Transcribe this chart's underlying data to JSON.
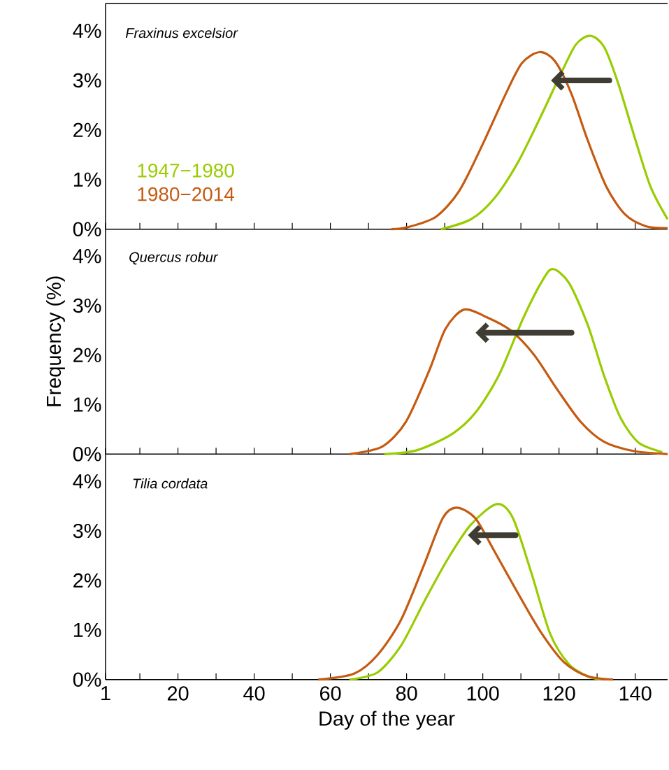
{
  "chart_data": [
    {
      "type": "line",
      "title": "Fraxinus excelsior",
      "legend": "left",
      "tick_labels": "y",
      "xlim": [
        1,
        148.5
      ],
      "ylim": [
        0,
        4.55
      ],
      "xticks": [
        1,
        {
          "value": 10,
          "label": null
        },
        20,
        {
          "value": 30,
          "label": null
        },
        40,
        {
          "value": 50,
          "label": null
        },
        60,
        {
          "value": 70,
          "label": null
        },
        80,
        {
          "value": 90,
          "label": null
        },
        100,
        {
          "value": 110,
          "label": null
        },
        120,
        {
          "value": 130,
          "label": null
        },
        140
      ],
      "yticks": [
        {
          "value": 0,
          "label": "0%"
        },
        {
          "value": 1,
          "label": "1%"
        },
        {
          "value": 2,
          "label": "2%"
        },
        {
          "value": 3,
          "label": "3%"
        },
        {
          "value": 4,
          "label": "4%"
        }
      ],
      "series": [
        {
          "name": "1947−1980",
          "color": "#99cc00",
          "x": [
            89,
            96.9,
            103,
            109.1,
            115.2,
            120.1,
            124.4,
            128.2,
            131.8,
            135.4,
            139.7,
            144,
            148.5
          ],
          "values": [
            0,
            0.2,
            0.62,
            1.33,
            2.27,
            3.07,
            3.72,
            3.9,
            3.68,
            2.97,
            1.89,
            0.86,
            0.2
          ]
        },
        {
          "name": "1980−2014",
          "color": "#c55a11",
          "x": [
            76,
            80.3,
            87.7,
            93.8,
            99.9,
            106.1,
            110.3,
            114.9,
            118.9,
            123.2,
            127.5,
            132.4,
            137.3,
            142.8,
            148.5
          ],
          "values": [
            0,
            0.04,
            0.25,
            0.77,
            1.7,
            2.74,
            3.35,
            3.57,
            3.39,
            2.74,
            1.8,
            0.86,
            0.3,
            0.06,
            0.02
          ]
        }
      ]
    },
    {
      "type": "line",
      "title": "Quercus robur",
      "ylabel": "Frequency (%)",
      "tick_labels": "y",
      "xlim": [
        1,
        148.5
      ],
      "ylim": [
        0,
        4.55
      ],
      "xticks": [
        1,
        {
          "value": 10,
          "label": null
        },
        20,
        {
          "value": 30,
          "label": null
        },
        40,
        {
          "value": 50,
          "label": null
        },
        60,
        {
          "value": 70,
          "label": null
        },
        80,
        {
          "value": 90,
          "label": null
        },
        100,
        {
          "value": 110,
          "label": null
        },
        120,
        {
          "value": 130,
          "label": null
        },
        140
      ],
      "yticks": [
        {
          "value": 0,
          "label": "0%"
        },
        {
          "value": 1,
          "label": "1%"
        },
        {
          "value": 2,
          "label": "2%"
        },
        {
          "value": 3,
          "label": "3%"
        },
        {
          "value": 4,
          "label": "4%"
        }
      ],
      "series": [
        {
          "color": "#99cc00",
          "x": [
            74.2,
            82.8,
            92,
            98.1,
            104.2,
            110.4,
            115.3,
            118.3,
            122.6,
            127.5,
            131.8,
            136.1,
            140.9,
            147.1
          ],
          "values": [
            0,
            0.08,
            0.41,
            0.84,
            1.59,
            2.71,
            3.46,
            3.74,
            3.46,
            2.62,
            1.59,
            0.74,
            0.23,
            0.04
          ]
        },
        {
          "color": "#c55a11",
          "x": [
            65.1,
            73.6,
            79.8,
            85.9,
            90.2,
            95.1,
            101.2,
            107.3,
            113.4,
            119.5,
            125.7,
            131.8,
            139.7,
            148.5
          ],
          "values": [
            0,
            0.15,
            0.65,
            1.68,
            2.53,
            2.92,
            2.76,
            2.5,
            2.01,
            1.31,
            0.65,
            0.25,
            0.06,
            0
          ]
        }
      ]
    },
    {
      "type": "line",
      "title": "Tilia cordata",
      "xlabel": "Day of the year",
      "xlim": [
        1,
        148.5
      ],
      "ylim": [
        0,
        4.55
      ],
      "xticks": [
        1,
        {
          "value": 10,
          "label": null
        },
        20,
        {
          "value": 30,
          "label": null
        },
        40,
        {
          "value": 50,
          "label": null
        },
        60,
        {
          "value": 70,
          "label": null
        },
        80,
        {
          "value": 90,
          "label": null
        },
        100,
        {
          "value": 110,
          "label": null
        },
        120,
        {
          "value": 130,
          "label": null
        },
        140
      ],
      "yticks": [
        {
          "value": 0,
          "label": "0%"
        },
        {
          "value": 1,
          "label": "1%"
        },
        {
          "value": 2,
          "label": "2%"
        },
        {
          "value": 3,
          "label": "3%"
        },
        {
          "value": 4,
          "label": "4%"
        }
      ],
      "series": [
        {
          "color": "#99cc00",
          "x": [
            65,
            72.3,
            78.5,
            84.6,
            90.7,
            96.8,
            103.6,
            107.9,
            112.8,
            117.7,
            122.6,
            127.4,
            131.1
          ],
          "values": [
            0,
            0.14,
            0.68,
            1.57,
            2.42,
            3.12,
            3.54,
            3.26,
            2.14,
            0.92,
            0.31,
            0.07,
            0
          ]
        },
        {
          "color": "#c55a11",
          "x": [
            56.8,
            66.2,
            72.3,
            78.5,
            84.6,
            89.5,
            93.1,
            98,
            102.9,
            109.1,
            115.2,
            121.3,
            127.4,
            134.2
          ],
          "values": [
            0,
            0.12,
            0.49,
            1.2,
            2.32,
            3.26,
            3.47,
            3.26,
            2.61,
            1.76,
            0.96,
            0.35,
            0.07,
            0
          ]
        }
      ]
    }
  ]
}
